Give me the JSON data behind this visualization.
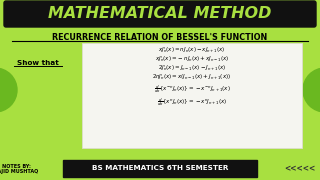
{
  "bg_color": "#a8e040",
  "title": "MATHEMATICAL METHOD",
  "title_bg": "#111111",
  "title_color": "#a8e040",
  "subtitle": "RECURRENCE RELATION OF BESSEL'S FUNCTION",
  "subtitle_color": "#000000",
  "show_that": "Show that",
  "formula_lines": [
    "$xJ_n'(x) = nJ_n(x) - xJ_{n+1}(x)$",
    "$xJ_n'(x) = -nJ_n(x) + xJ_{n-1}(x)$",
    "$2J_n'(x) = J_{n-1}(x) - J_{n+1}(x)$",
    "$2nJ_n'(x) = x(J_{n-1}(x) + J_{n+1}(x))$",
    "$\\frac{d}{dx}\\{x^{-n}J_n(x)\\} = -x^{-n}J_{n+1}(x)$",
    "$\\frac{d}{dx}\\{x^n J_n(x)\\} = -x^n J_{n+1}(x)$"
  ],
  "notes_line1": "NOTES BY:",
  "notes_line2": "SAJID MUSHTAQ",
  "bottom_text": "BS MATHEMATICS 6TH SEMESTER",
  "bottom_bg": "#111111",
  "bottom_color": "#ffffff",
  "formula_box_color": "#f5f5f0",
  "formula_box_edge": "#ddddcc",
  "chevrons": "<<<<<",
  "dark_green_circle": "#6ab820"
}
